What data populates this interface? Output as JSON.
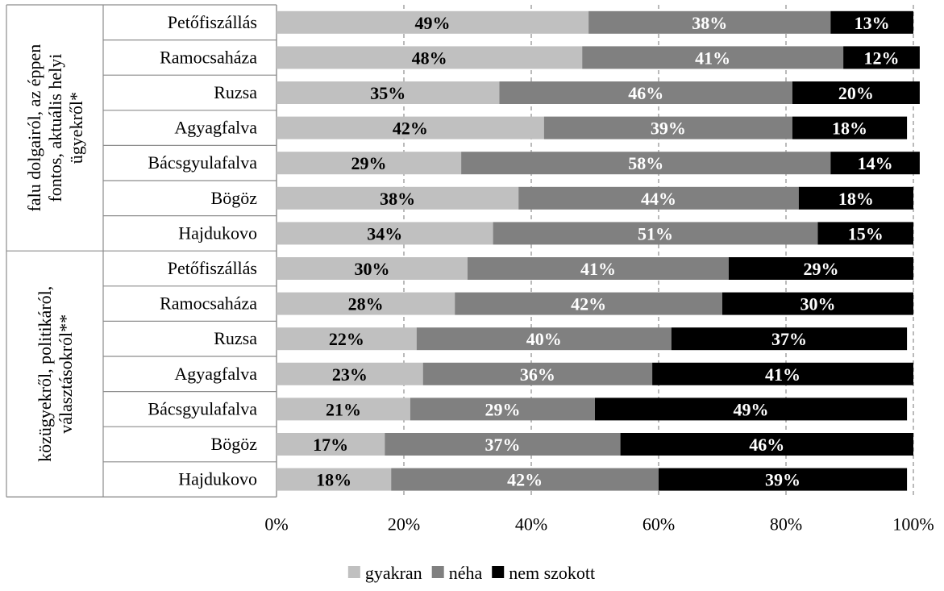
{
  "chart_data": {
    "type": "bar",
    "orientation": "horizontal",
    "stacked": "percent",
    "groups": [
      {
        "label_lines": [
          "falu dolgairól, az éppen",
          "fontos, aktuális helyi",
          "ügyekről*"
        ],
        "categories": [
          "Petőfiszállás",
          "Ramocsaháza",
          "Ruzsa",
          "Agyagfalva",
          "Bácsgyulafalva",
          "Bögöz",
          "Hajdukovo"
        ],
        "series": [
          {
            "name": "gyakran",
            "values": [
              49,
              48,
              35,
              42,
              29,
              38,
              34
            ]
          },
          {
            "name": "néha",
            "values": [
              38,
              41,
              46,
              39,
              58,
              44,
              51
            ]
          },
          {
            "name": "nem szokott",
            "values": [
              13,
              12,
              20,
              18,
              14,
              18,
              15
            ]
          }
        ]
      },
      {
        "label_lines": [
          "közügyekről, politikáról,",
          "választásokról**"
        ],
        "categories": [
          "Petőfiszállás",
          "Ramocsaháza",
          "Ruzsa",
          "Agyagfalva",
          "Bácsgyulafalva",
          "Bögöz",
          "Hajdukovo"
        ],
        "series": [
          {
            "name": "gyakran",
            "values": [
              30,
              28,
              22,
              23,
              21,
              17,
              18
            ]
          },
          {
            "name": "néha",
            "values": [
              41,
              42,
              40,
              36,
              29,
              37,
              42
            ]
          },
          {
            "name": "nem szokott",
            "values": [
              29,
              30,
              37,
              41,
              49,
              46,
              39
            ]
          }
        ]
      }
    ],
    "value_suffix": "%",
    "xlim": [
      0,
      100
    ],
    "xticks": [
      "0%",
      "20%",
      "40%",
      "60%",
      "80%",
      "100%"
    ],
    "grid": "vertical-dashed",
    "legend": {
      "position": "bottom",
      "entries": [
        "gyakran",
        "néha",
        "nem szokott"
      ]
    },
    "colors": {
      "gyakran": "#c0c0c0",
      "néha": "#808080",
      "nem szokott": "#000000",
      "label_on_light": "#000000",
      "label_on_dark": "#ffffff"
    }
  }
}
